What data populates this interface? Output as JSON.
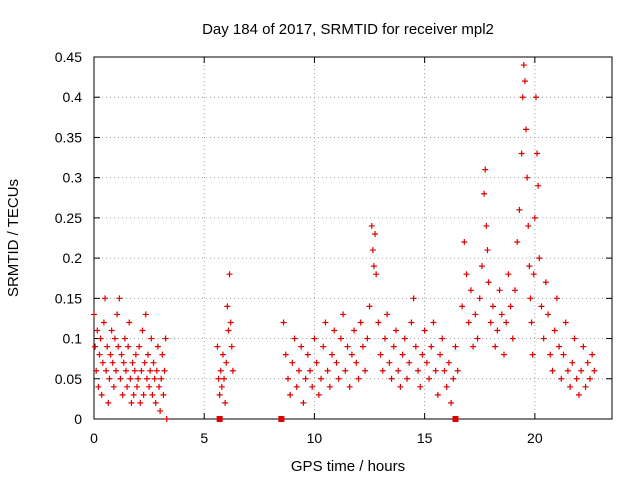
{
  "chart_data": {
    "type": "scatter",
    "title": "Day 184 of 2017, SRMTID for receiver mpl2",
    "xlabel": "GPS time / hours",
    "ylabel": "SRMTID / TECUs",
    "xlim": [
      0,
      23.5
    ],
    "ylim": [
      0,
      0.45
    ],
    "x_ticks": [
      0,
      5,
      10,
      15,
      20
    ],
    "x_tick_labels": [
      "0",
      "5",
      "10",
      "15",
      "20"
    ],
    "y_ticks": [
      0,
      0.05,
      0.1,
      0.15,
      0.2,
      0.25,
      0.3,
      0.35,
      0.4,
      0.45
    ],
    "y_tick_labels": [
      "0",
      "0.05",
      "0.1",
      "0.15",
      "0.2",
      "0.25",
      "0.3",
      "0.35",
      "0.4",
      "0.45"
    ],
    "grid": true,
    "marker": "plus",
    "marker_color": "#e00000",
    "series": [
      {
        "name": "SRMTID",
        "points": [
          [
            0.0,
            0.13
          ],
          [
            0.05,
            0.09
          ],
          [
            0.1,
            0.06
          ],
          [
            0.15,
            0.11
          ],
          [
            0.2,
            0.04
          ],
          [
            0.25,
            0.08
          ],
          [
            0.3,
            0.1
          ],
          [
            0.35,
            0.03
          ],
          [
            0.4,
            0.07
          ],
          [
            0.45,
            0.12
          ],
          [
            0.5,
            0.15
          ],
          [
            0.55,
            0.06
          ],
          [
            0.6,
            0.09
          ],
          [
            0.65,
            0.02
          ],
          [
            0.7,
            0.05
          ],
          [
            0.75,
            0.08
          ],
          [
            0.8,
            0.11
          ],
          [
            0.85,
            0.07
          ],
          [
            0.9,
            0.04
          ],
          [
            0.95,
            0.1
          ],
          [
            1.0,
            0.06
          ],
          [
            1.05,
            0.13
          ],
          [
            1.1,
            0.09
          ],
          [
            1.15,
            0.15
          ],
          [
            1.2,
            0.05
          ],
          [
            1.25,
            0.08
          ],
          [
            1.3,
            0.03
          ],
          [
            1.35,
            0.07
          ],
          [
            1.4,
            0.1
          ],
          [
            1.45,
            0.06
          ],
          [
            1.5,
            0.04
          ],
          [
            1.55,
            0.09
          ],
          [
            1.6,
            0.12
          ],
          [
            1.65,
            0.05
          ],
          [
            1.7,
            0.02
          ],
          [
            1.75,
            0.07
          ],
          [
            1.8,
            0.03
          ],
          [
            1.85,
            0.06
          ],
          [
            1.9,
            0.08
          ],
          [
            1.95,
            0.04
          ],
          [
            2.0,
            0.05
          ],
          [
            2.05,
            0.09
          ],
          [
            2.1,
            0.02
          ],
          [
            2.15,
            0.06
          ],
          [
            2.2,
            0.11
          ],
          [
            2.25,
            0.03
          ],
          [
            2.3,
            0.07
          ],
          [
            2.35,
            0.13
          ],
          [
            2.4,
            0.05
          ],
          [
            2.45,
            0.08
          ],
          [
            2.5,
            0.04
          ],
          [
            2.55,
            0.06
          ],
          [
            2.6,
            0.1
          ],
          [
            2.65,
            0.03
          ],
          [
            2.7,
            0.07
          ],
          [
            2.75,
            0.05
          ],
          [
            2.8,
            0.02
          ],
          [
            2.85,
            0.06
          ],
          [
            2.9,
            0.09
          ],
          [
            2.95,
            0.04
          ],
          [
            3.0,
            0.01
          ],
          [
            3.05,
            0.05
          ],
          [
            3.1,
            0.08
          ],
          [
            3.15,
            0.03
          ],
          [
            3.2,
            0.06
          ],
          [
            3.25,
            0.1
          ],
          [
            3.3,
            0.0
          ],
          [
            5.6,
            0.09
          ],
          [
            5.65,
            0.05
          ],
          [
            5.7,
            0.03
          ],
          [
            5.75,
            0.06
          ],
          [
            5.8,
            0.04
          ],
          [
            5.85,
            0.08
          ],
          [
            5.9,
            0.05
          ],
          [
            5.95,
            0.02
          ],
          [
            6.0,
            0.07
          ],
          [
            6.05,
            0.14
          ],
          [
            6.1,
            0.11
          ],
          [
            6.15,
            0.18
          ],
          [
            6.2,
            0.12
          ],
          [
            6.25,
            0.09
          ],
          [
            6.3,
            0.06
          ],
          [
            8.6,
            0.12
          ],
          [
            8.7,
            0.08
          ],
          [
            8.8,
            0.05
          ],
          [
            8.9,
            0.03
          ],
          [
            9.0,
            0.07
          ],
          [
            9.1,
            0.1
          ],
          [
            9.2,
            0.04
          ],
          [
            9.3,
            0.06
          ],
          [
            9.4,
            0.09
          ],
          [
            9.5,
            0.02
          ],
          [
            9.6,
            0.05
          ],
          [
            9.7,
            0.08
          ],
          [
            9.8,
            0.06
          ],
          [
            9.9,
            0.04
          ],
          [
            10.0,
            0.1
          ],
          [
            10.1,
            0.07
          ],
          [
            10.2,
            0.03
          ],
          [
            10.3,
            0.05
          ],
          [
            10.4,
            0.09
          ],
          [
            10.5,
            0.12
          ],
          [
            10.6,
            0.06
          ],
          [
            10.7,
            0.04
          ],
          [
            10.8,
            0.08
          ],
          [
            10.9,
            0.11
          ],
          [
            11.0,
            0.07
          ],
          [
            11.1,
            0.05
          ],
          [
            11.2,
            0.1
          ],
          [
            11.3,
            0.13
          ],
          [
            11.4,
            0.06
          ],
          [
            11.5,
            0.09
          ],
          [
            11.6,
            0.04
          ],
          [
            11.7,
            0.08
          ],
          [
            11.8,
            0.11
          ],
          [
            11.9,
            0.07
          ],
          [
            12.0,
            0.05
          ],
          [
            12.1,
            0.12
          ],
          [
            12.2,
            0.09
          ],
          [
            12.3,
            0.06
          ],
          [
            12.4,
            0.1
          ],
          [
            12.5,
            0.14
          ],
          [
            12.6,
            0.24
          ],
          [
            12.65,
            0.21
          ],
          [
            12.7,
            0.19
          ],
          [
            12.75,
            0.23
          ],
          [
            12.8,
            0.18
          ],
          [
            12.9,
            0.12
          ],
          [
            13.0,
            0.08
          ],
          [
            13.1,
            0.06
          ],
          [
            13.2,
            0.1
          ],
          [
            13.3,
            0.13
          ],
          [
            13.4,
            0.07
          ],
          [
            13.5,
            0.05
          ],
          [
            13.6,
            0.09
          ],
          [
            13.7,
            0.11
          ],
          [
            13.8,
            0.06
          ],
          [
            13.9,
            0.04
          ],
          [
            14.0,
            0.08
          ],
          [
            14.1,
            0.1
          ],
          [
            14.2,
            0.05
          ],
          [
            14.3,
            0.07
          ],
          [
            14.4,
            0.12
          ],
          [
            14.5,
            0.15
          ],
          [
            14.6,
            0.09
          ],
          [
            14.7,
            0.06
          ],
          [
            14.8,
            0.04
          ],
          [
            14.9,
            0.08
          ],
          [
            15.0,
            0.11
          ],
          [
            15.1,
            0.07
          ],
          [
            15.2,
            0.05
          ],
          [
            15.3,
            0.09
          ],
          [
            15.4,
            0.12
          ],
          [
            15.5,
            0.06
          ],
          [
            15.6,
            0.03
          ],
          [
            15.7,
            0.08
          ],
          [
            15.8,
            0.1
          ],
          [
            15.9,
            0.06
          ],
          [
            16.0,
            0.04
          ],
          [
            16.1,
            0.07
          ],
          [
            16.2,
            0.02
          ],
          [
            16.3,
            0.05
          ],
          [
            16.4,
            0.09
          ],
          [
            16.5,
            0.06
          ],
          [
            16.7,
            0.14
          ],
          [
            16.8,
            0.22
          ],
          [
            16.9,
            0.18
          ],
          [
            17.0,
            0.12
          ],
          [
            17.1,
            0.16
          ],
          [
            17.2,
            0.09
          ],
          [
            17.3,
            0.13
          ],
          [
            17.4,
            0.1
          ],
          [
            17.5,
            0.15
          ],
          [
            17.6,
            0.19
          ],
          [
            17.7,
            0.28
          ],
          [
            17.75,
            0.31
          ],
          [
            17.8,
            0.24
          ],
          [
            17.85,
            0.21
          ],
          [
            17.9,
            0.17
          ],
          [
            18.0,
            0.12
          ],
          [
            18.1,
            0.14
          ],
          [
            18.2,
            0.09
          ],
          [
            18.3,
            0.11
          ],
          [
            18.4,
            0.16
          ],
          [
            18.5,
            0.13
          ],
          [
            18.6,
            0.08
          ],
          [
            18.7,
            0.12
          ],
          [
            18.8,
            0.18
          ],
          [
            18.9,
            0.14
          ],
          [
            19.0,
            0.1
          ],
          [
            19.1,
            0.16
          ],
          [
            19.2,
            0.22
          ],
          [
            19.3,
            0.26
          ],
          [
            19.4,
            0.33
          ],
          [
            19.45,
            0.4
          ],
          [
            19.5,
            0.44
          ],
          [
            19.55,
            0.42
          ],
          [
            19.6,
            0.36
          ],
          [
            19.65,
            0.3
          ],
          [
            19.7,
            0.24
          ],
          [
            19.75,
            0.19
          ],
          [
            19.8,
            0.15
          ],
          [
            19.85,
            0.12
          ],
          [
            19.9,
            0.08
          ],
          [
            19.95,
            0.18
          ],
          [
            20.0,
            0.25
          ],
          [
            20.05,
            0.4
          ],
          [
            20.1,
            0.33
          ],
          [
            20.15,
            0.29
          ],
          [
            20.2,
            0.2
          ],
          [
            20.3,
            0.14
          ],
          [
            20.4,
            0.1
          ],
          [
            20.5,
            0.17
          ],
          [
            20.6,
            0.13
          ],
          [
            20.7,
            0.08
          ],
          [
            20.8,
            0.06
          ],
          [
            20.9,
            0.11
          ],
          [
            21.0,
            0.15
          ],
          [
            21.1,
            0.09
          ],
          [
            21.2,
            0.05
          ],
          [
            21.3,
            0.08
          ],
          [
            21.4,
            0.12
          ],
          [
            21.5,
            0.06
          ],
          [
            21.6,
            0.04
          ],
          [
            21.7,
            0.07
          ],
          [
            21.8,
            0.1
          ],
          [
            21.9,
            0.05
          ],
          [
            22.0,
            0.03
          ],
          [
            22.1,
            0.06
          ],
          [
            22.2,
            0.09
          ],
          [
            22.3,
            0.04
          ],
          [
            22.4,
            0.07
          ],
          [
            22.5,
            0.05
          ],
          [
            22.6,
            0.08
          ],
          [
            22.7,
            0.06
          ]
        ]
      }
    ],
    "baseline_squares_x": [
      5.7,
      8.5,
      16.4
    ]
  }
}
